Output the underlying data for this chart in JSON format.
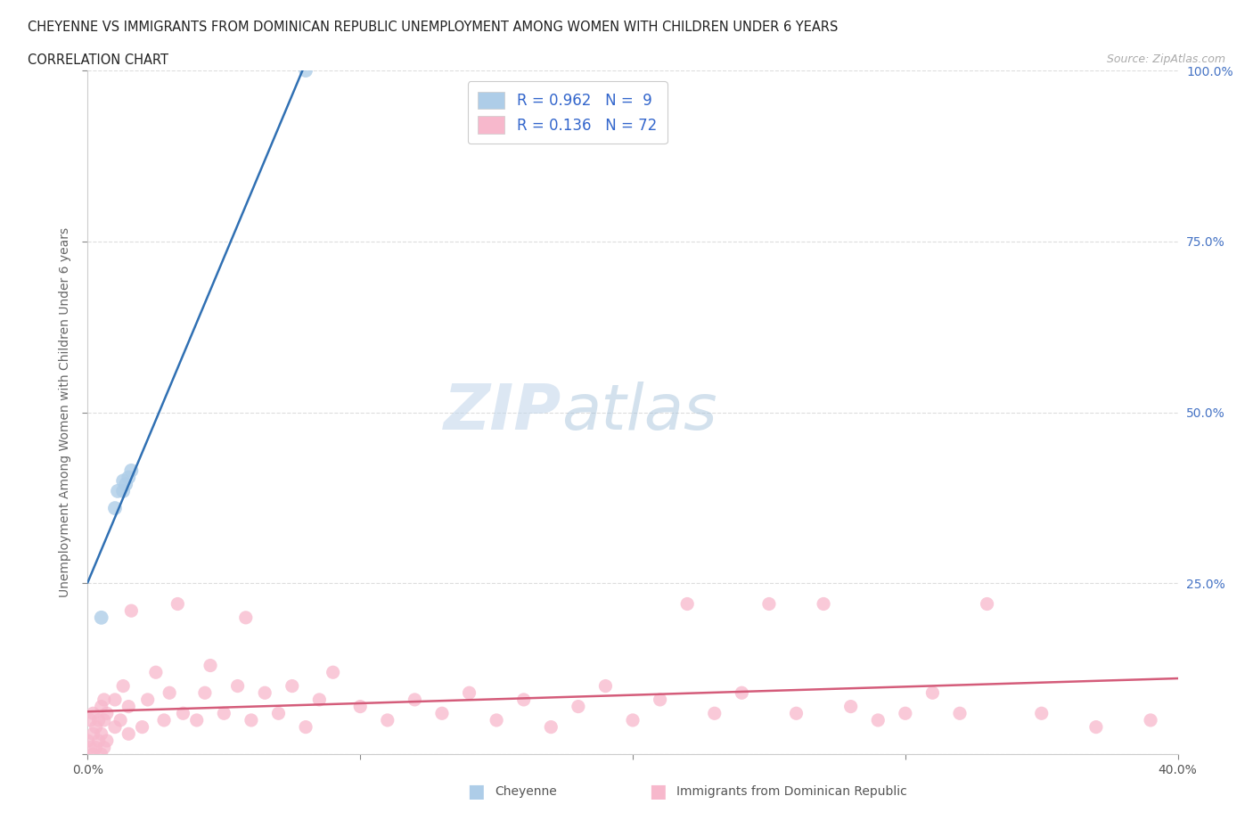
{
  "title": "CHEYENNE VS IMMIGRANTS FROM DOMINICAN REPUBLIC UNEMPLOYMENT AMONG WOMEN WITH CHILDREN UNDER 6 YEARS",
  "subtitle": "CORRELATION CHART",
  "source": "Source: ZipAtlas.com",
  "ylabel": "Unemployment Among Women with Children Under 6 years",
  "xlim": [
    0.0,
    0.4
  ],
  "ylim": [
    0.0,
    1.0
  ],
  "cheyenne_color": "#aecde8",
  "cheyenne_line_color": "#3070b3",
  "dr_color": "#f7b8cc",
  "dr_line_color": "#d45c7a",
  "cheyenne_R": 0.962,
  "cheyenne_N": 9,
  "dr_R": 0.136,
  "dr_N": 72,
  "watermark_zip": "ZIP",
  "watermark_atlas": "atlas",
  "background_color": "#ffffff",
  "cheyenne_x": [
    0.005,
    0.01,
    0.011,
    0.013,
    0.013,
    0.014,
    0.015,
    0.016,
    0.08
  ],
  "cheyenne_y": [
    0.2,
    0.36,
    0.385,
    0.385,
    0.4,
    0.395,
    0.405,
    0.415,
    1.0
  ],
  "dr_x": [
    0.0,
    0.001,
    0.001,
    0.002,
    0.002,
    0.002,
    0.003,
    0.003,
    0.004,
    0.004,
    0.005,
    0.005,
    0.005,
    0.006,
    0.006,
    0.006,
    0.007,
    0.007,
    0.01,
    0.01,
    0.012,
    0.013,
    0.015,
    0.015,
    0.016,
    0.02,
    0.022,
    0.025,
    0.028,
    0.03,
    0.033,
    0.035,
    0.04,
    0.043,
    0.045,
    0.05,
    0.055,
    0.058,
    0.06,
    0.065,
    0.07,
    0.075,
    0.08,
    0.085,
    0.09,
    0.1,
    0.11,
    0.12,
    0.13,
    0.14,
    0.15,
    0.16,
    0.17,
    0.18,
    0.19,
    0.2,
    0.21,
    0.22,
    0.23,
    0.24,
    0.25,
    0.26,
    0.27,
    0.28,
    0.29,
    0.3,
    0.31,
    0.32,
    0.33,
    0.35,
    0.37,
    0.39
  ],
  "dr_y": [
    0.02,
    0.01,
    0.05,
    0.0,
    0.03,
    0.06,
    0.01,
    0.04,
    0.02,
    0.05,
    0.0,
    0.03,
    0.07,
    0.01,
    0.05,
    0.08,
    0.02,
    0.06,
    0.04,
    0.08,
    0.05,
    0.1,
    0.03,
    0.07,
    0.21,
    0.04,
    0.08,
    0.12,
    0.05,
    0.09,
    0.22,
    0.06,
    0.05,
    0.09,
    0.13,
    0.06,
    0.1,
    0.2,
    0.05,
    0.09,
    0.06,
    0.1,
    0.04,
    0.08,
    0.12,
    0.07,
    0.05,
    0.08,
    0.06,
    0.09,
    0.05,
    0.08,
    0.04,
    0.07,
    0.1,
    0.05,
    0.08,
    0.22,
    0.06,
    0.09,
    0.22,
    0.06,
    0.22,
    0.07,
    0.05,
    0.06,
    0.09,
    0.06,
    0.22,
    0.06,
    0.04,
    0.05
  ]
}
